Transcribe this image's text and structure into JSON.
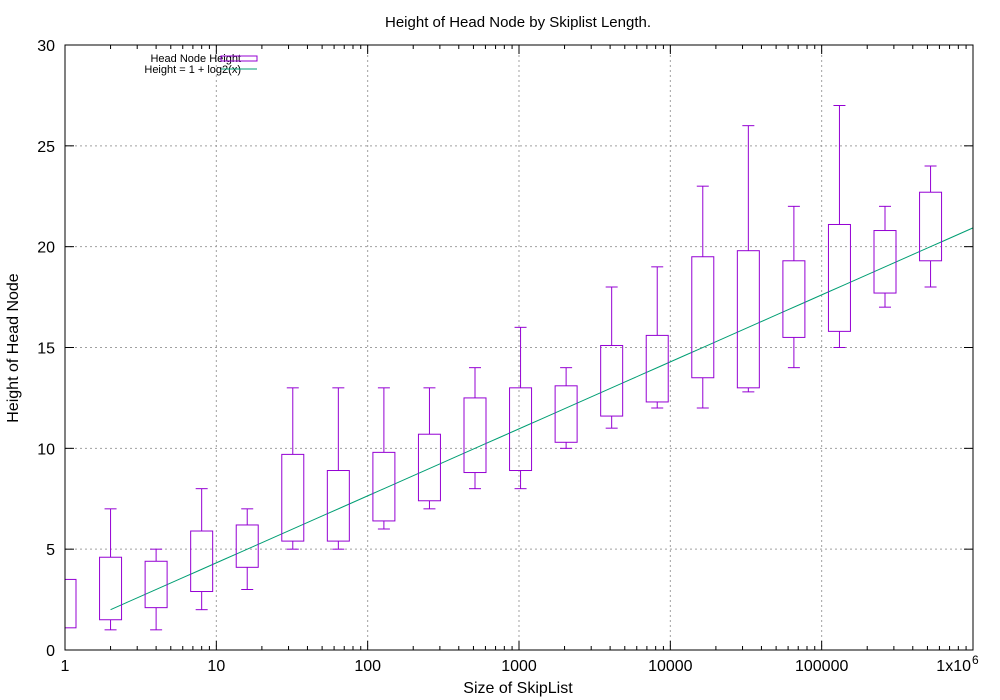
{
  "chart_data": {
    "type": "boxplot",
    "title": "Height of Head Node by Skiplist Length.",
    "xlabel": "Size of SkipList",
    "ylabel": "Height of Head Node",
    "xscale": "log",
    "xlim": [
      1,
      1000000
    ],
    "ylim": [
      0,
      30
    ],
    "x_ticks": [
      {
        "value": 1,
        "label": "1"
      },
      {
        "value": 10,
        "label": "10"
      },
      {
        "value": 100,
        "label": "100"
      },
      {
        "value": 1000,
        "label": "1000"
      },
      {
        "value": 10000,
        "label": "10000"
      },
      {
        "value": 100000,
        "label": "100000"
      },
      {
        "value": 1000000,
        "label": "1x10",
        "sup": "6"
      }
    ],
    "y_ticks": [
      0,
      5,
      10,
      15,
      20,
      25,
      30
    ],
    "grid": true,
    "legend_position": "top-left",
    "series": [
      {
        "name": "Head Node Height",
        "kind": "box",
        "color": "#9400d3",
        "boxes": [
          {
            "x": 1,
            "whisker_low": 1.1,
            "q1": 1.1,
            "q3": 3.5,
            "whisker_high": 3.5
          },
          {
            "x": 2,
            "whisker_low": 1,
            "q1": 1.5,
            "q3": 4.6,
            "whisker_high": 7
          },
          {
            "x": 4,
            "whisker_low": 1,
            "q1": 2.1,
            "q3": 4.4,
            "whisker_high": 5
          },
          {
            "x": 8,
            "whisker_low": 2,
            "q1": 2.9,
            "q3": 5.9,
            "whisker_high": 8
          },
          {
            "x": 16,
            "whisker_low": 3,
            "q1": 4.1,
            "q3": 6.2,
            "whisker_high": 7
          },
          {
            "x": 32,
            "whisker_low": 5,
            "q1": 5.4,
            "q3": 9.7,
            "whisker_high": 13
          },
          {
            "x": 64,
            "whisker_low": 5,
            "q1": 5.4,
            "q3": 8.9,
            "whisker_high": 13
          },
          {
            "x": 128,
            "whisker_low": 6,
            "q1": 6.4,
            "q3": 9.8,
            "whisker_high": 13
          },
          {
            "x": 256,
            "whisker_low": 7,
            "q1": 7.4,
            "q3": 10.7,
            "whisker_high": 13
          },
          {
            "x": 512,
            "whisker_low": 8,
            "q1": 8.8,
            "q3": 12.5,
            "whisker_high": 14
          },
          {
            "x": 1024,
            "whisker_low": 8,
            "q1": 8.9,
            "q3": 13,
            "whisker_high": 16
          },
          {
            "x": 2048,
            "whisker_low": 10,
            "q1": 10.3,
            "q3": 13.1,
            "whisker_high": 14
          },
          {
            "x": 4096,
            "whisker_low": 11,
            "q1": 11.6,
            "q3": 15.1,
            "whisker_high": 18
          },
          {
            "x": 8192,
            "whisker_low": 12,
            "q1": 12.3,
            "q3": 15.6,
            "whisker_high": 19
          },
          {
            "x": 16384,
            "whisker_low": 12,
            "q1": 13.5,
            "q3": 19.5,
            "whisker_high": 23
          },
          {
            "x": 32768,
            "whisker_low": 12.8,
            "q1": 13,
            "q3": 19.8,
            "whisker_high": 26
          },
          {
            "x": 65536,
            "whisker_low": 14,
            "q1": 15.5,
            "q3": 19.3,
            "whisker_high": 22
          },
          {
            "x": 131072,
            "whisker_low": 15,
            "q1": 15.8,
            "q3": 21.1,
            "whisker_high": 27
          },
          {
            "x": 262144,
            "whisker_low": 17,
            "q1": 17.7,
            "q3": 20.8,
            "whisker_high": 22
          },
          {
            "x": 524288,
            "whisker_low": 18,
            "q1": 19.3,
            "q3": 22.7,
            "whisker_high": 24
          }
        ]
      },
      {
        "name": "Height = 1 + log2(x)",
        "kind": "line",
        "color": "#009e73",
        "x_start": 2,
        "x_end": 1000000
      }
    ]
  }
}
